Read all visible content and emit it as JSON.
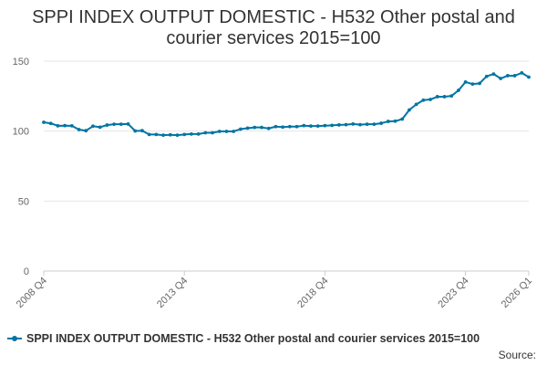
{
  "title_line1": "SPPI INDEX OUTPUT DOMESTIC - H532 Other postal and",
  "title_line2": "courier services 2015=100",
  "source_label": "Source:",
  "colors": {
    "series": "#0075a3",
    "grid": "#e6e6e6",
    "axis_text": "#666666",
    "text": "#333333"
  },
  "chart_data": {
    "type": "line",
    "title": "SPPI INDEX OUTPUT DOMESTIC - H532 Other postal and courier services 2015=100",
    "x_start": "2008 Q4",
    "x_end": "2026 Q1",
    "x_tick_labels": [
      "2008 Q4",
      "2013 Q4",
      "2018 Q4",
      "2023 Q4",
      "2026 Q1"
    ],
    "ylim": [
      0,
      150
    ],
    "y_ticks": [
      0,
      50,
      100,
      150
    ],
    "grid": true,
    "legend": "bottom",
    "series": [
      {
        "name": "SPPI INDEX OUTPUT DOMESTIC - H532 Other postal and courier services 2015=100",
        "values": [
          106.3,
          105.5,
          103.8,
          103.9,
          103.8,
          101.1,
          100.3,
          103.5,
          102.8,
          104.3,
          104.9,
          104.9,
          105.1,
          100.1,
          100.3,
          97.6,
          97.6,
          97.1,
          97.3,
          97.1,
          97.6,
          97.9,
          97.9,
          98.8,
          98.8,
          99.8,
          99.8,
          99.8,
          101.4,
          102.1,
          102.6,
          102.6,
          101.9,
          103.2,
          102.9,
          103.2,
          103.2,
          103.9,
          103.6,
          103.6,
          103.9,
          104.1,
          104.4,
          104.6,
          105.1,
          104.6,
          104.9,
          104.9,
          105.6,
          106.9,
          107.1,
          108.6,
          115.1,
          119.1,
          122.1,
          122.6,
          124.6,
          124.6,
          125.1,
          129.1,
          135.1,
          133.6,
          134.1,
          139.1,
          140.8,
          137.6,
          139.6,
          139.6,
          141.6,
          138.6
        ]
      }
    ]
  }
}
